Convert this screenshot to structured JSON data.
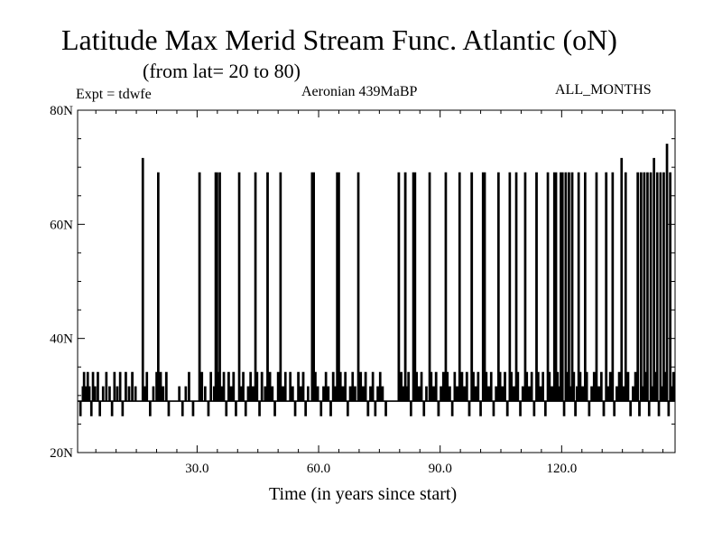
{
  "chart_data": {
    "type": "line",
    "title": "Latitude Max Merid Stream Func. Atlantic (oN)",
    "subtitle": "(from lat= 20 to 80)",
    "top_left_label": "Expt = tdwfe",
    "top_center_label": "Aeronian 439MaBP",
    "top_right_label": "ALL_MONTHS",
    "xlabel": "Time (in years since start)",
    "ylabel": "",
    "xlim": [
      0.5,
      148
    ],
    "ylim": [
      20,
      80
    ],
    "x_ticks": [
      30,
      60,
      90,
      120
    ],
    "x_tick_labels": [
      "30.0",
      "60.0",
      "90.0",
      "120.0"
    ],
    "y_ticks": [
      20,
      40,
      60,
      80
    ],
    "y_tick_labels": [
      "20N",
      "40N",
      "60N",
      "80N"
    ],
    "baseline_latitude": 29,
    "levels": [
      26.5,
      29,
      31.5,
      34,
      69,
      71.5
    ],
    "series": [
      {
        "color": "#000000",
        "step": 0.25,
        "events": [
          [
            1.2,
            26.5
          ],
          [
            1.8,
            31.5
          ],
          [
            2.1,
            34
          ],
          [
            2.6,
            31.5
          ],
          [
            3.0,
            34
          ],
          [
            3.4,
            31.5
          ],
          [
            3.9,
            26.5
          ],
          [
            4.3,
            34
          ],
          [
            4.8,
            31.5
          ],
          [
            5.5,
            34
          ],
          [
            6.0,
            26.5
          ],
          [
            6.8,
            31.5
          ],
          [
            7.6,
            34
          ],
          [
            8.4,
            31.5
          ],
          [
            9.0,
            26.5
          ],
          [
            9.6,
            34
          ],
          [
            10.3,
            31.5
          ],
          [
            11.0,
            34
          ],
          [
            11.6,
            26.5
          ],
          [
            12.4,
            34
          ],
          [
            13.2,
            31.5
          ],
          [
            14.0,
            34
          ],
          [
            14.8,
            31.5
          ],
          [
            16.6,
            71.5
          ],
          [
            17.0,
            31.5
          ],
          [
            17.6,
            34
          ],
          [
            18.4,
            26.5
          ],
          [
            19.2,
            31.5
          ],
          [
            20.0,
            34
          ],
          [
            20.4,
            69
          ],
          [
            21.0,
            34
          ],
          [
            21.6,
            31.5
          ],
          [
            22.4,
            34
          ],
          [
            23.0,
            26.5
          ],
          [
            25.6,
            31.5
          ],
          [
            26.4,
            26.5
          ],
          [
            27.2,
            31.5
          ],
          [
            28.0,
            34
          ],
          [
            29.0,
            26.5
          ],
          [
            30.6,
            69
          ],
          [
            31.2,
            34
          ],
          [
            32.0,
            31.5
          ],
          [
            32.8,
            26.5
          ],
          [
            33.4,
            34
          ],
          [
            34.2,
            31.5
          ],
          [
            34.6,
            69
          ],
          [
            34.9,
            69
          ],
          [
            35.2,
            34
          ],
          [
            35.6,
            69
          ],
          [
            36.0,
            31.5
          ],
          [
            36.6,
            34
          ],
          [
            37.2,
            26.5
          ],
          [
            37.8,
            34
          ],
          [
            38.4,
            31.5
          ],
          [
            39.0,
            34
          ],
          [
            39.6,
            26.5
          ],
          [
            40.4,
            69
          ],
          [
            40.8,
            31.5
          ],
          [
            41.4,
            34
          ],
          [
            42.0,
            26.5
          ],
          [
            42.6,
            31.5
          ],
          [
            43.2,
            34
          ],
          [
            43.8,
            31.5
          ],
          [
            44.4,
            69
          ],
          [
            44.8,
            34
          ],
          [
            45.4,
            26.5
          ],
          [
            46.0,
            34
          ],
          [
            46.8,
            31.5
          ],
          [
            47.4,
            69
          ],
          [
            48.0,
            34
          ],
          [
            48.6,
            31.5
          ],
          [
            49.2,
            26.5
          ],
          [
            50.0,
            34
          ],
          [
            50.6,
            69
          ],
          [
            51.2,
            31.5
          ],
          [
            51.8,
            34
          ],
          [
            53.0,
            34
          ],
          [
            53.6,
            31.5
          ],
          [
            54.2,
            26.5
          ],
          [
            55.0,
            34
          ],
          [
            55.6,
            31.5
          ],
          [
            56.2,
            34
          ],
          [
            56.8,
            26.5
          ],
          [
            57.4,
            31.5
          ],
          [
            58.4,
            69
          ],
          [
            58.8,
            69
          ],
          [
            59.2,
            34
          ],
          [
            59.8,
            31.5
          ],
          [
            60.6,
            26.5
          ],
          [
            61.2,
            31.5
          ],
          [
            61.8,
            34
          ],
          [
            62.4,
            31.5
          ],
          [
            63.0,
            26.5
          ],
          [
            63.6,
            34
          ],
          [
            64.2,
            31.5
          ],
          [
            64.6,
            69
          ],
          [
            65.0,
            69
          ],
          [
            65.4,
            34
          ],
          [
            66.0,
            31.5
          ],
          [
            66.6,
            34
          ],
          [
            67.2,
            26.5
          ],
          [
            67.8,
            31.5
          ],
          [
            68.4,
            34
          ],
          [
            69.0,
            31.5
          ],
          [
            69.8,
            69
          ],
          [
            70.4,
            34
          ],
          [
            71.0,
            31.5
          ],
          [
            71.6,
            34
          ],
          [
            72.2,
            26.5
          ],
          [
            72.8,
            31.5
          ],
          [
            73.4,
            34
          ],
          [
            74.0,
            26.5
          ],
          [
            74.6,
            31.5
          ],
          [
            75.2,
            34
          ],
          [
            75.8,
            31.5
          ],
          [
            76.6,
            26.5
          ],
          [
            79.8,
            69
          ],
          [
            80.4,
            34
          ],
          [
            81.0,
            31.5
          ],
          [
            81.4,
            69
          ],
          [
            81.8,
            31.5
          ],
          [
            82.2,
            34
          ],
          [
            82.8,
            26.5
          ],
          [
            83.4,
            69
          ],
          [
            83.8,
            69
          ],
          [
            84.2,
            34
          ],
          [
            84.8,
            31.5
          ],
          [
            85.4,
            34
          ],
          [
            86.0,
            26.5
          ],
          [
            86.6,
            31.5
          ],
          [
            87.4,
            69
          ],
          [
            87.8,
            34
          ],
          [
            88.4,
            31.5
          ],
          [
            89.0,
            34
          ],
          [
            89.6,
            26.5
          ],
          [
            90.2,
            31.5
          ],
          [
            90.8,
            34
          ],
          [
            91.4,
            69
          ],
          [
            91.8,
            34
          ],
          [
            92.4,
            31.5
          ],
          [
            93.0,
            26.5
          ],
          [
            93.6,
            34
          ],
          [
            94.2,
            31.5
          ],
          [
            94.8,
            69
          ],
          [
            95.4,
            34
          ],
          [
            96.0,
            31.5
          ],
          [
            96.6,
            34
          ],
          [
            97.2,
            26.5
          ],
          [
            97.8,
            69
          ],
          [
            98.2,
            34
          ],
          [
            98.8,
            31.5
          ],
          [
            99.4,
            34
          ],
          [
            100.0,
            26.5
          ],
          [
            100.6,
            69
          ],
          [
            101.0,
            69
          ],
          [
            101.4,
            34
          ],
          [
            102.0,
            31.5
          ],
          [
            102.6,
            34
          ],
          [
            103.2,
            26.5
          ],
          [
            103.8,
            31.5
          ],
          [
            104.4,
            69
          ],
          [
            104.8,
            34
          ],
          [
            105.4,
            31.5
          ],
          [
            106.0,
            34
          ],
          [
            106.6,
            26.5
          ],
          [
            107.2,
            69
          ],
          [
            107.6,
            34
          ],
          [
            108.2,
            31.5
          ],
          [
            108.8,
            69
          ],
          [
            109.2,
            34
          ],
          [
            109.8,
            26.5
          ],
          [
            110.4,
            31.5
          ],
          [
            111.0,
            69
          ],
          [
            111.4,
            34
          ],
          [
            112.0,
            31.5
          ],
          [
            112.6,
            34
          ],
          [
            113.2,
            26.5
          ],
          [
            113.8,
            69
          ],
          [
            114.2,
            34
          ],
          [
            114.8,
            31.5
          ],
          [
            115.4,
            34
          ],
          [
            116.0,
            26.5
          ],
          [
            116.6,
            69
          ],
          [
            117.0,
            34
          ],
          [
            117.6,
            31.5
          ],
          [
            118.2,
            69
          ],
          [
            118.6,
            69
          ],
          [
            119.0,
            34
          ],
          [
            119.4,
            31.5
          ],
          [
            119.8,
            69
          ],
          [
            120.2,
            69
          ],
          [
            120.6,
            26.5
          ],
          [
            121.0,
            69
          ],
          [
            121.4,
            34
          ],
          [
            121.8,
            69
          ],
          [
            122.2,
            31.5
          ],
          [
            122.6,
            69
          ],
          [
            123.0,
            34
          ],
          [
            123.4,
            26.5
          ],
          [
            123.8,
            31.5
          ],
          [
            124.2,
            69
          ],
          [
            124.6,
            34
          ],
          [
            125.2,
            31.5
          ],
          [
            125.8,
            69
          ],
          [
            126.2,
            34
          ],
          [
            126.8,
            26.5
          ],
          [
            127.4,
            31.5
          ],
          [
            128.0,
            34
          ],
          [
            128.6,
            69
          ],
          [
            129.2,
            31.5
          ],
          [
            129.8,
            34
          ],
          [
            130.4,
            26.5
          ],
          [
            131.0,
            69
          ],
          [
            131.4,
            31.5
          ],
          [
            132.0,
            34
          ],
          [
            132.6,
            69
          ],
          [
            133.0,
            26.5
          ],
          [
            133.6,
            31.5
          ],
          [
            134.2,
            34
          ],
          [
            134.8,
            71.5
          ],
          [
            135.2,
            31.5
          ],
          [
            135.8,
            69
          ],
          [
            136.4,
            34
          ],
          [
            137.0,
            26.5
          ],
          [
            137.6,
            31.5
          ],
          [
            138.2,
            34
          ],
          [
            138.8,
            69
          ],
          [
            139.2,
            26.5
          ],
          [
            139.6,
            69
          ],
          [
            140.0,
            31.5
          ],
          [
            140.4,
            69
          ],
          [
            140.8,
            34
          ],
          [
            141.2,
            69
          ],
          [
            141.6,
            26.5
          ],
          [
            142.0,
            69
          ],
          [
            142.4,
            31.5
          ],
          [
            142.8,
            71.5
          ],
          [
            143.2,
            34
          ],
          [
            143.6,
            69
          ],
          [
            144.0,
            26.5
          ],
          [
            144.4,
            69
          ],
          [
            144.8,
            31.5
          ],
          [
            145.2,
            69
          ],
          [
            145.6,
            34
          ],
          [
            146.0,
            74
          ],
          [
            146.4,
            26.5
          ],
          [
            146.8,
            69
          ],
          [
            147.2,
            31.5
          ],
          [
            147.6,
            34
          ]
        ]
      }
    ]
  }
}
